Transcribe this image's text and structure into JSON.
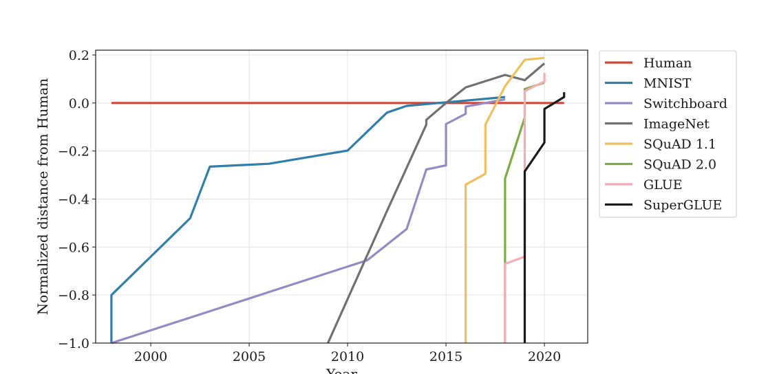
{
  "chart_data": {
    "type": "line",
    "title": "",
    "xlabel": "Year",
    "ylabel": "Normalized distance from Human",
    "xlim": [
      1997.2,
      2022.2
    ],
    "ylim": [
      -1.0,
      0.22
    ],
    "xticks": [
      2000,
      2005,
      2010,
      2015,
      2020
    ],
    "yticks": [
      -1.0,
      -0.8,
      -0.6,
      -0.4,
      -0.2,
      0.0,
      0.2
    ],
    "ytick_labels": [
      "−1.0",
      "−0.8",
      "−0.6",
      "−0.4",
      "−0.2",
      "0.0",
      "0.2"
    ],
    "grid": true,
    "legend_position": "outside-right",
    "series": [
      {
        "name": "Human",
        "color": "#d0473a",
        "points": [
          [
            1998,
            0.0
          ],
          [
            2021,
            0.0
          ]
        ]
      },
      {
        "name": "MNIST",
        "color": "#2f7fa8",
        "points": [
          [
            1998,
            -1.0
          ],
          [
            1998,
            -0.8
          ],
          [
            2002,
            -0.48
          ],
          [
            2003,
            -0.265
          ],
          [
            2006,
            -0.253
          ],
          [
            2010,
            -0.198
          ],
          [
            2012,
            -0.04
          ],
          [
            2013,
            -0.012
          ],
          [
            2016,
            0.01
          ],
          [
            2018,
            0.025
          ]
        ]
      },
      {
        "name": "Switchboard",
        "color": "#9489c4",
        "points": [
          [
            1998,
            -1.0
          ],
          [
            2011,
            -0.655
          ],
          [
            2013,
            -0.525
          ],
          [
            2014,
            -0.277
          ],
          [
            2015,
            -0.26
          ],
          [
            2015,
            -0.088
          ],
          [
            2016,
            -0.045
          ],
          [
            2016,
            -0.015
          ],
          [
            2018,
            0.015
          ]
        ]
      },
      {
        "name": "ImageNet",
        "color": "#707070",
        "points": [
          [
            2009,
            -1.0
          ],
          [
            2012,
            -0.45
          ],
          [
            2014,
            -0.09
          ],
          [
            2014,
            -0.07
          ],
          [
            2015,
            0.0
          ],
          [
            2016,
            0.065
          ],
          [
            2018,
            0.117
          ],
          [
            2019,
            0.095
          ],
          [
            2020,
            0.165
          ]
        ]
      },
      {
        "name": "SQuAD 1.1",
        "color": "#efbf5e",
        "points": [
          [
            2016,
            -1.0
          ],
          [
            2016,
            -0.34
          ],
          [
            2017,
            -0.295
          ],
          [
            2017,
            -0.09
          ],
          [
            2018,
            0.07
          ],
          [
            2019,
            0.18
          ],
          [
            2020,
            0.188
          ]
        ]
      },
      {
        "name": "SQuAD 2.0",
        "color": "#7aad42",
        "points": [
          [
            2018,
            -1.0
          ],
          [
            2018,
            -0.675
          ],
          [
            2018,
            -0.315
          ],
          [
            2019,
            -0.06
          ],
          [
            2019,
            0.058
          ],
          [
            2020,
            0.085
          ]
        ]
      },
      {
        "name": "GLUE",
        "color": "#f4adb4",
        "points": [
          [
            2018,
            -1.0
          ],
          [
            2018,
            -0.67
          ],
          [
            2019,
            -0.64
          ],
          [
            2019,
            -0.28
          ],
          [
            2019,
            0.05
          ],
          [
            2020,
            0.09
          ],
          [
            2020,
            0.125
          ]
        ]
      },
      {
        "name": "SuperGLUE",
        "color": "#1a1a1a",
        "points": [
          [
            2019,
            -1.0
          ],
          [
            2019,
            -0.285
          ],
          [
            2020,
            -0.165
          ],
          [
            2020,
            -0.025
          ],
          [
            2021,
            0.025
          ],
          [
            2021,
            0.045
          ]
        ]
      }
    ]
  }
}
